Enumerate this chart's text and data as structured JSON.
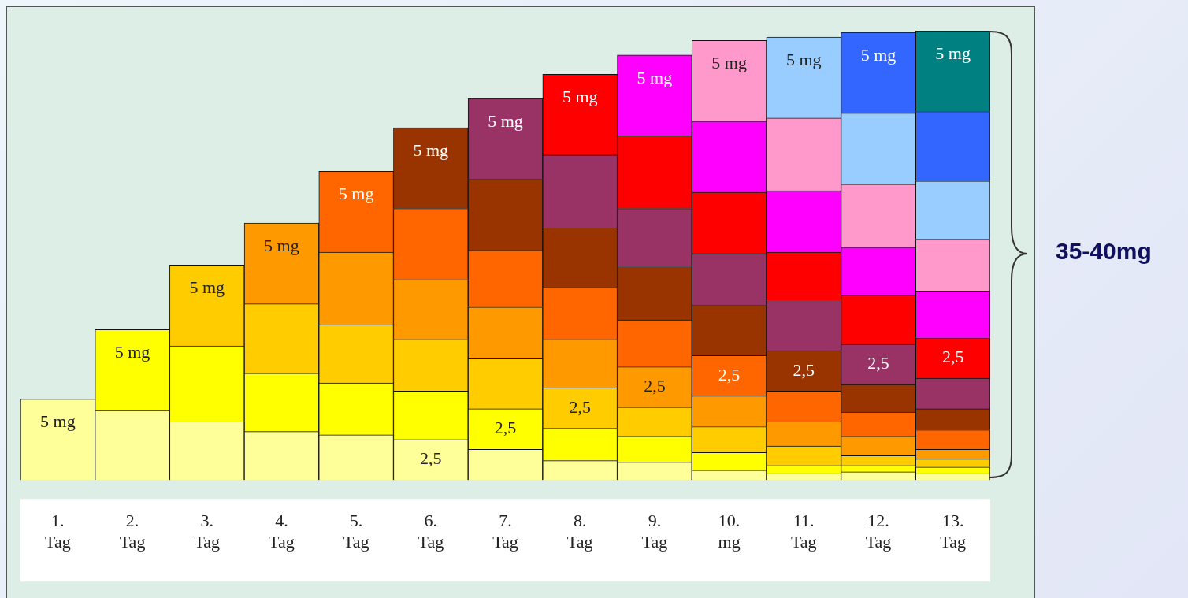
{
  "chart_data": {
    "type": "bar",
    "stacked": true,
    "tick_labels": "x",
    "legend": false,
    "grid": false,
    "categories": [
      "1. Tag",
      "2. Tag",
      "3. Tag",
      "4. Tag",
      "5. Tag",
      "6. Tag",
      "7. Tag",
      "8. Tag",
      "9. Tag",
      "10. mg",
      "11. Tag",
      "12. Tag",
      "13. Tag"
    ],
    "annotations": [
      "35-40mg"
    ],
    "series": [
      {
        "color": "#ffff99",
        "values": [
          5,
          4.3,
          3.6,
          3.0,
          2.8,
          2.5,
          1.9,
          1.2,
          1.1,
          0.6,
          0.4,
          0.5,
          0.4
        ],
        "value_labels": [
          "5 mg",
          null,
          null,
          null,
          null,
          "2,5",
          null,
          null,
          null,
          null,
          null,
          null,
          null
        ]
      },
      {
        "color": "#ffff00",
        "values": [
          null,
          5,
          4.7,
          3.6,
          3.2,
          3.0,
          2.5,
          2.0,
          1.6,
          1.1,
          0.5,
          0.4,
          0.4
        ],
        "value_labels": [
          null,
          "5 mg",
          null,
          null,
          null,
          null,
          "2,5",
          null,
          null,
          null,
          null,
          null,
          null
        ]
      },
      {
        "color": "#ffcc00",
        "values": [
          null,
          null,
          5,
          4.3,
          3.6,
          3.2,
          3.1,
          2.5,
          1.8,
          1.6,
          1.2,
          0.6,
          0.5
        ],
        "value_labels": [
          null,
          null,
          "5 mg",
          null,
          null,
          null,
          null,
          "2,5",
          null,
          null,
          null,
          null,
          null
        ]
      },
      {
        "color": "#ff9900",
        "values": [
          null,
          null,
          null,
          5,
          4.5,
          3.7,
          3.2,
          3.0,
          2.5,
          1.9,
          1.5,
          1.2,
          0.6
        ],
        "value_labels": [
          null,
          null,
          null,
          "5 mg",
          null,
          null,
          null,
          null,
          "2,5",
          null,
          null,
          null,
          null
        ]
      },
      {
        "color": "#ff6600",
        "values": [
          null,
          null,
          null,
          null,
          5,
          4.4,
          3.5,
          3.2,
          2.9,
          2.5,
          1.9,
          1.5,
          1.2
        ],
        "value_labels": [
          null,
          null,
          null,
          null,
          "5 mg",
          null,
          null,
          null,
          null,
          "2,5",
          null,
          null,
          null
        ]
      },
      {
        "color": "#993300",
        "values": [
          null,
          null,
          null,
          null,
          null,
          5,
          4.4,
          3.7,
          3.3,
          3.1,
          2.5,
          1.7,
          1.3
        ],
        "value_labels": [
          null,
          null,
          null,
          null,
          null,
          "5 mg",
          null,
          null,
          null,
          null,
          "2,5",
          null,
          null
        ]
      },
      {
        "color": "#993366",
        "values": [
          null,
          null,
          null,
          null,
          null,
          null,
          5,
          4.5,
          3.6,
          3.2,
          3.1,
          2.5,
          1.9
        ],
        "value_labels": [
          null,
          null,
          null,
          null,
          null,
          null,
          "5 mg",
          null,
          null,
          null,
          null,
          "2,5",
          null
        ]
      },
      {
        "color": "#ff0000",
        "values": [
          null,
          null,
          null,
          null,
          null,
          null,
          null,
          5,
          4.5,
          3.8,
          3.0,
          3.0,
          2.5
        ],
        "value_labels": [
          null,
          null,
          null,
          null,
          null,
          null,
          null,
          "5 mg",
          null,
          null,
          null,
          null,
          "2,5"
        ]
      },
      {
        "color": "#ff00ff",
        "values": [
          null,
          null,
          null,
          null,
          null,
          null,
          null,
          null,
          5,
          4.4,
          3.8,
          3.0,
          2.9
        ],
        "value_labels": [
          null,
          null,
          null,
          null,
          null,
          null,
          null,
          null,
          "5 mg",
          null,
          null,
          null,
          null
        ]
      },
      {
        "color": "#ff99cc",
        "values": [
          null,
          null,
          null,
          null,
          null,
          null,
          null,
          null,
          null,
          5,
          4.5,
          3.9,
          3.2
        ],
        "value_labels": [
          null,
          null,
          null,
          null,
          null,
          null,
          null,
          null,
          null,
          "5 mg",
          null,
          null,
          null
        ]
      },
      {
        "color": "#99ccff",
        "values": [
          null,
          null,
          null,
          null,
          null,
          null,
          null,
          null,
          null,
          null,
          5,
          4.4,
          3.6
        ],
        "value_labels": [
          null,
          null,
          null,
          null,
          null,
          null,
          null,
          null,
          null,
          null,
          "5 mg",
          null,
          null
        ]
      },
      {
        "color": "#3366ff",
        "values": [
          null,
          null,
          null,
          null,
          null,
          null,
          null,
          null,
          null,
          null,
          null,
          5,
          4.3
        ],
        "value_labels": [
          null,
          null,
          null,
          null,
          null,
          null,
          null,
          null,
          null,
          null,
          null,
          "5 mg",
          null
        ]
      },
      {
        "color": "#008080",
        "values": [
          null,
          null,
          null,
          null,
          null,
          null,
          null,
          null,
          null,
          null,
          null,
          null,
          5
        ],
        "value_labels": [
          null,
          null,
          null,
          null,
          null,
          null,
          null,
          null,
          null,
          null,
          null,
          null,
          "5 mg"
        ]
      }
    ]
  }
}
